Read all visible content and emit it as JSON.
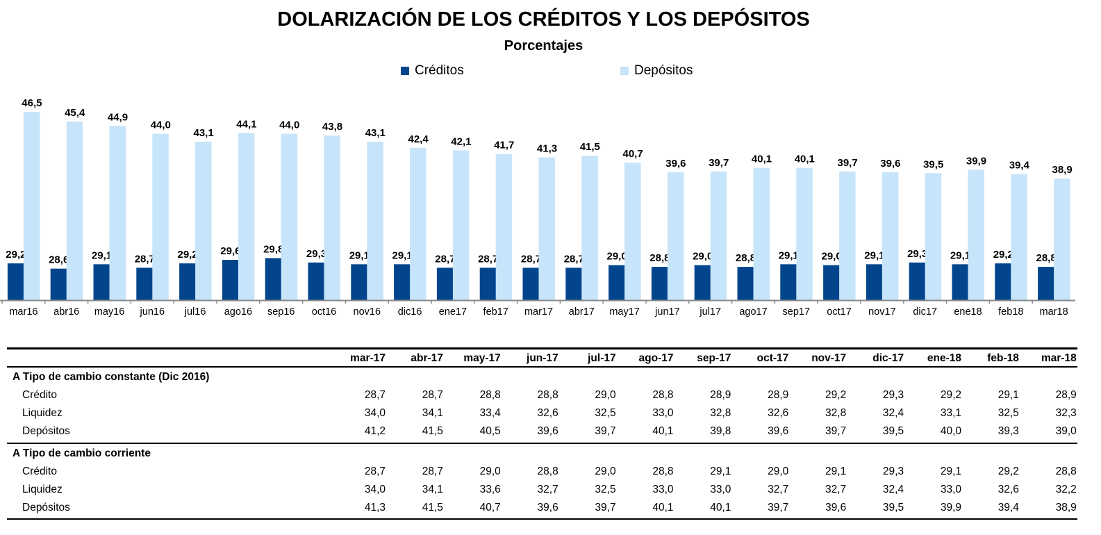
{
  "colors": {
    "creditos": "#03458D",
    "depositos": "#C6E4FA",
    "axis": "#888888"
  },
  "chart_data": {
    "type": "bar",
    "title": "DOLARIZACIÓN DE LOS CRÉDITOS Y LOS DEPÓSITOS",
    "subtitle": "Porcentajes",
    "legend_position": "top",
    "grid": false,
    "ylim": [
      25,
      48
    ],
    "categories": [
      "mar16",
      "abr16",
      "may16",
      "jun16",
      "jul16",
      "ago16",
      "sep16",
      "oct16",
      "nov16",
      "dic16",
      "ene17",
      "feb17",
      "mar17",
      "abr17",
      "may17",
      "jun17",
      "jul17",
      "ago17",
      "sep17",
      "oct17",
      "nov17",
      "dic17",
      "ene18",
      "feb18",
      "mar18"
    ],
    "series": [
      {
        "name": "Créditos",
        "values": [
          29.2,
          28.6,
          29.1,
          28.7,
          29.2,
          29.6,
          29.8,
          29.3,
          29.1,
          29.1,
          28.7,
          28.7,
          28.7,
          28.7,
          29.0,
          28.8,
          29.0,
          28.8,
          29.1,
          29.0,
          29.1,
          29.3,
          29.1,
          29.2,
          28.8
        ]
      },
      {
        "name": "Depósitos",
        "values": [
          46.5,
          45.4,
          44.9,
          44.0,
          43.1,
          44.1,
          44.0,
          43.8,
          43.1,
          42.4,
          42.1,
          41.7,
          41.3,
          41.5,
          40.7,
          39.6,
          39.7,
          40.1,
          40.1,
          39.7,
          39.6,
          39.5,
          39.9,
          39.4,
          38.9
        ]
      }
    ]
  },
  "table": {
    "columns": [
      "mar-17",
      "abr-17",
      "may-17",
      "jun-17",
      "jul-17",
      "ago-17",
      "sep-17",
      "oct-17",
      "nov-17",
      "dic-17",
      "ene-18",
      "feb-18",
      "mar-18"
    ],
    "groups": [
      {
        "title": "A Tipo de cambio constante (Dic 2016)",
        "rows": [
          {
            "label": "Crédito",
            "values": [
              "28,7",
              "28,7",
              "28,8",
              "28,8",
              "29,0",
              "28,8",
              "28,9",
              "28,9",
              "29,2",
              "29,3",
              "29,2",
              "29,1",
              "28,9"
            ]
          },
          {
            "label": "Liquidez",
            "values": [
              "34,0",
              "34,1",
              "33,4",
              "32,6",
              "32,5",
              "33,0",
              "32,8",
              "32,6",
              "32,8",
              "32,4",
              "33,1",
              "32,5",
              "32,3"
            ]
          },
          {
            "label": "Depósitos",
            "values": [
              "41,2",
              "41,5",
              "40,5",
              "39,6",
              "39,7",
              "40,1",
              "39,8",
              "39,6",
              "39,7",
              "39,5",
              "40,0",
              "39,3",
              "39,0"
            ]
          }
        ]
      },
      {
        "title": "A Tipo de cambio corriente",
        "rows": [
          {
            "label": "Crédito",
            "values": [
              "28,7",
              "28,7",
              "29,0",
              "28,8",
              "29,0",
              "28,8",
              "29,1",
              "29,0",
              "29,1",
              "29,3",
              "29,1",
              "29,2",
              "28,8"
            ]
          },
          {
            "label": "Liquidez",
            "values": [
              "34,0",
              "34,1",
              "33,6",
              "32,7",
              "32,5",
              "33,0",
              "33,0",
              "32,7",
              "32,7",
              "32,4",
              "33,0",
              "32,6",
              "32,2"
            ]
          },
          {
            "label": "Depósitos",
            "values": [
              "41,3",
              "41,5",
              "40,7",
              "39,6",
              "39,7",
              "40,1",
              "40,1",
              "39,7",
              "39,6",
              "39,5",
              "39,9",
              "39,4",
              "38,9"
            ]
          }
        ]
      }
    ]
  }
}
